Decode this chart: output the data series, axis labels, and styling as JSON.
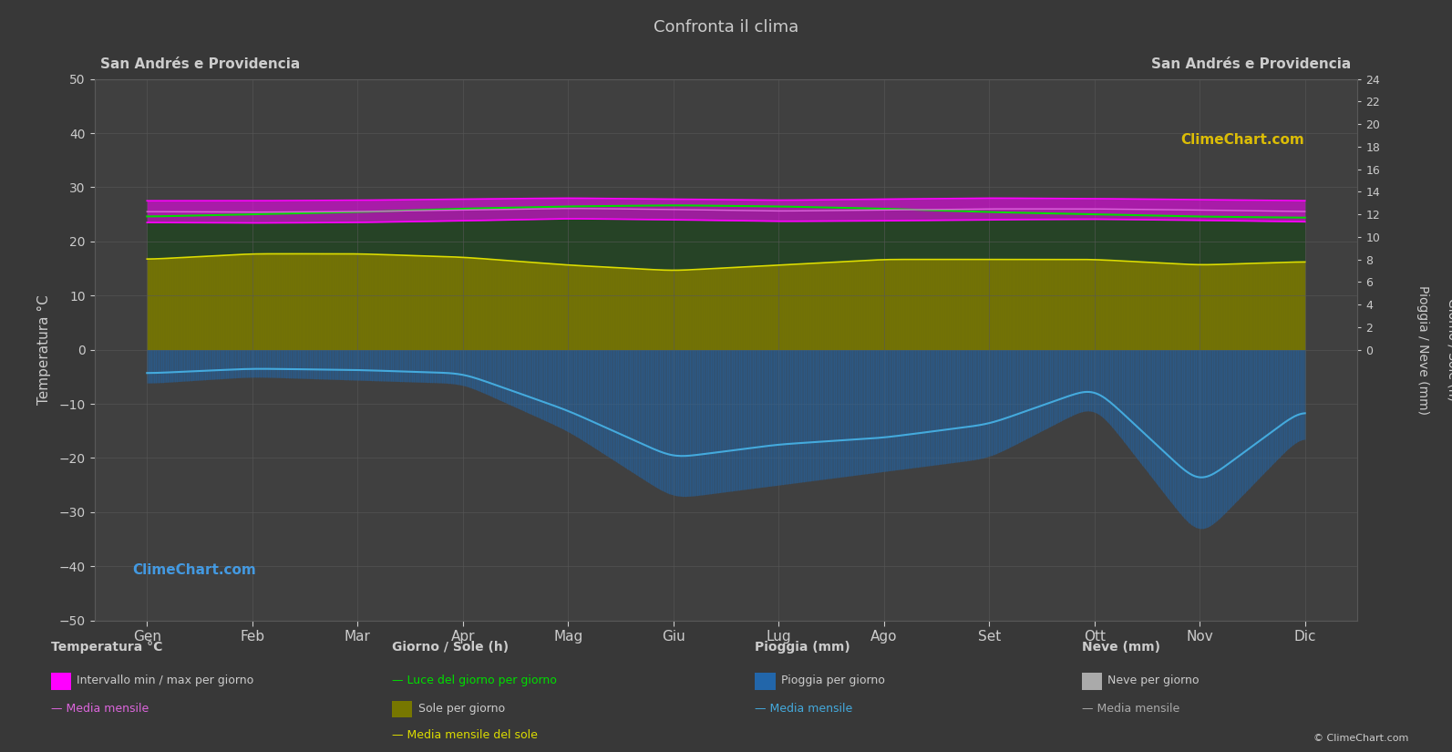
{
  "title": "Confronta il clima",
  "left_label": "San Andrés e Providencia",
  "right_label": "San Andrés e Providencia",
  "ylabel_left": "Temperatura °C",
  "ylabel_right": "Giorno / Sole (h)",
  "ylabel_right2": "Pioggia / Neve (mm)",
  "xlabel_months": [
    "Gen",
    "Feb",
    "Mar",
    "Apr",
    "Mag",
    "Giu",
    "Lug",
    "Ago",
    "Set",
    "Ott",
    "Nov",
    "Dic"
  ],
  "ylim_left": [
    -50,
    50
  ],
  "background_color": "#383838",
  "plot_bg_color": "#404040",
  "grid_color": "#585858",
  "text_color": "#cccccc",
  "temp_max": [
    27.5,
    27.5,
    27.6,
    27.8,
    28.0,
    27.8,
    27.6,
    27.8,
    28.0,
    27.9,
    27.7,
    27.5
  ],
  "temp_min": [
    23.5,
    23.4,
    23.5,
    23.8,
    24.2,
    24.0,
    23.7,
    23.8,
    24.0,
    24.1,
    23.9,
    23.6
  ],
  "temp_mean": [
    25.5,
    25.4,
    25.5,
    25.8,
    26.1,
    25.9,
    25.6,
    25.8,
    26.0,
    26.0,
    25.8,
    25.5
  ],
  "daylight": [
    11.8,
    12.0,
    12.2,
    12.5,
    12.7,
    12.8,
    12.7,
    12.5,
    12.2,
    12.0,
    11.8,
    11.7
  ],
  "sunshine_mean": [
    8.0,
    8.5,
    8.5,
    8.2,
    7.5,
    7.0,
    7.5,
    8.0,
    8.0,
    8.0,
    7.5,
    7.8
  ],
  "precip_daily": [
    5.0,
    4.0,
    4.5,
    5.0,
    12.0,
    22.0,
    20.0,
    18.0,
    16.0,
    8.0,
    28.0,
    12.0
  ],
  "precip_mean": [
    3.5,
    2.8,
    3.0,
    3.5,
    9.0,
    16.0,
    14.0,
    13.0,
    11.0,
    5.5,
    20.0,
    8.5
  ],
  "temp_band_color": "#ff00ff",
  "temp_mean_color": "#dd66dd",
  "daylight_color": "#00dd00",
  "sunshine_bar_color": "#888800",
  "sunshine_mean_color": "#dddd00",
  "precip_bar_color": "#2266aa",
  "precip_mean_color": "#44aadd",
  "watermark_text": "ClimeChart.com",
  "copyright_text": "© ClimeChart.com"
}
